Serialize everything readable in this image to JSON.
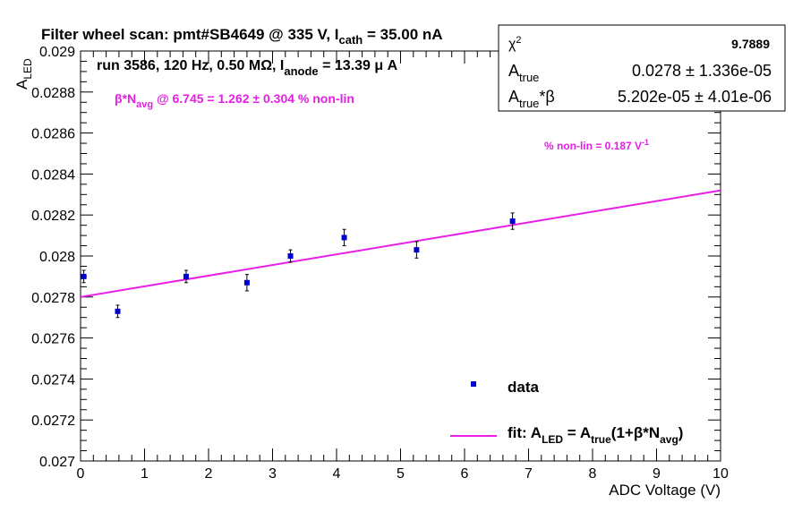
{
  "chart_data": {
    "type": "scatter",
    "title": "Filter wheel scan: pmt#SB4649 @   335 V, I",
    "title_sub": "cath",
    "title_tail": " = 35.00 nA",
    "subtitle": "run 3586, 120 Hz, 0.50 MΩ, I",
    "subtitle_sub": "anode",
    "subtitle_tail": " = 13.39 μ A",
    "annotation_beta_pre": "β*N",
    "annotation_beta_sub": "avg",
    "annotation_beta_tail": " @ 6.745 = 1.262 ± 0.304 % non-lin",
    "annotation_slope": "% non-lin = 0.187 V",
    "annotation_slope_sup": "-1",
    "xlabel": "ADC Voltage (V)",
    "ylabel_main": "A",
    "ylabel_sub": "LED",
    "xlim": [
      0,
      10
    ],
    "ylim": [
      0.027,
      0.029
    ],
    "xticks": [
      "0",
      "1",
      "2",
      "3",
      "4",
      "5",
      "6",
      "7",
      "8",
      "9",
      "10"
    ],
    "yticks": [
      "0.027",
      "0.0272",
      "0.0274",
      "0.0276",
      "0.0278",
      "0.028",
      "0.0282",
      "0.0284",
      "0.0286",
      "0.0288",
      "0.029"
    ],
    "series": [
      {
        "name": "data",
        "color": "#0000cc",
        "x": [
          0.05,
          0.58,
          1.65,
          2.6,
          3.28,
          4.12,
          5.25,
          6.75
        ],
        "y": [
          0.0279,
          0.02773,
          0.0279,
          0.02787,
          0.028,
          0.02809,
          0.02803,
          0.02817
        ],
        "err": [
          3e-05,
          3e-05,
          3e-05,
          4e-05,
          3e-05,
          4e-05,
          4e-05,
          4e-05
        ]
      },
      {
        "name_pre": "fit: A",
        "name_sub1": "LED",
        "name_mid": " = A",
        "name_sub2": "true",
        "name_mid2": "(1+β*N",
        "name_sub3": "avg",
        "name_tail": ")",
        "color": "#e61ee6",
        "x": [
          0,
          10
        ],
        "y": [
          0.0278,
          0.02832
        ]
      }
    ],
    "legend_data_label": "data",
    "stats": {
      "chi2_label": "χ",
      "chi2_sup": "2",
      "chi2_value": "9.7889",
      "atrue_label": "A",
      "atrue_sub": "true",
      "atrue_value": "0.0278 ± 1.336e-05",
      "atb_label": "A",
      "atb_sub": "true",
      "atb_tail": "*β",
      "atb_value": "5.202e-05 ± 4.01e-06"
    }
  }
}
